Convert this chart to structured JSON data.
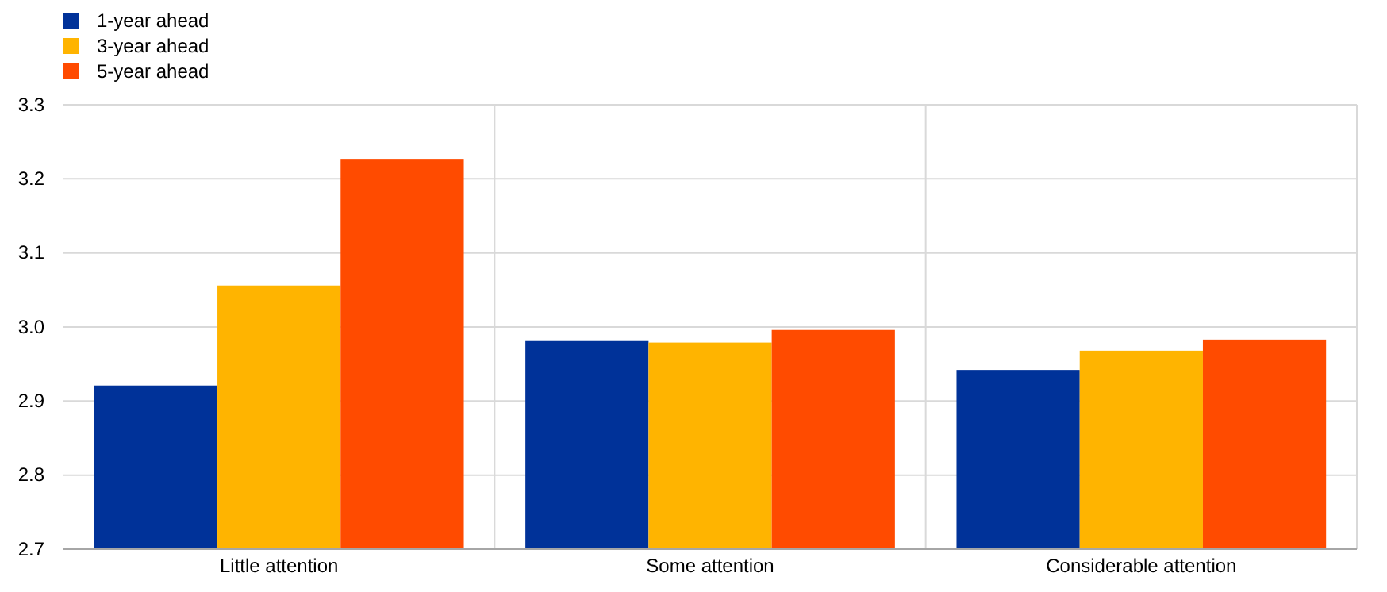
{
  "chart_data": {
    "type": "bar",
    "categories": [
      "Little attention",
      "Some attention",
      "Considerable attention"
    ],
    "series": [
      {
        "name": "1-year ahead",
        "color": "#003299",
        "values": [
          2.921,
          2.981,
          2.942
        ]
      },
      {
        "name": "3-year ahead",
        "color": "#ffb400",
        "values": [
          3.056,
          2.979,
          2.968
        ]
      },
      {
        "name": "5-year ahead",
        "color": "#ff4b00",
        "values": [
          3.227,
          2.996,
          2.983
        ]
      }
    ],
    "ylim": [
      2.7,
      3.3
    ],
    "yticks": [
      {
        "value": 2.7,
        "label": "2.7"
      },
      {
        "value": 2.8,
        "label": "2.8"
      },
      {
        "value": 2.9,
        "label": "2.9"
      },
      {
        "value": 3.0,
        "label": "3.0"
      },
      {
        "value": 3.1,
        "label": "3.1"
      },
      {
        "value": 3.2,
        "label": "3.2"
      },
      {
        "value": 3.3,
        "label": "3.3"
      }
    ],
    "grid": true,
    "legend": "top left"
  }
}
